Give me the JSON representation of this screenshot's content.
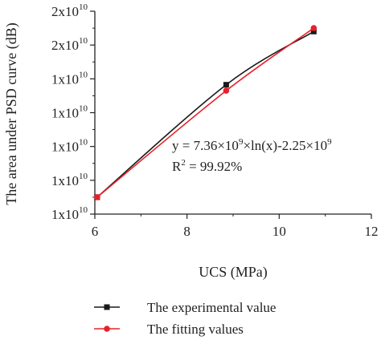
{
  "chart_data": {
    "type": "line",
    "xlabel": "UCS (MPa)",
    "ylabel": "The area under PSD curve (dB)",
    "xlim": [
      6,
      12
    ],
    "xticks": [
      6,
      8,
      10,
      12
    ],
    "xtick_labels": [
      "6",
      "8",
      "10",
      "12"
    ],
    "ytick_labels": [
      {
        "base": "1x10",
        "exp": "10"
      },
      {
        "base": "1x10",
        "exp": "10"
      },
      {
        "base": "1x10",
        "exp": "10"
      },
      {
        "base": "1x10",
        "exp": "10"
      },
      {
        "base": "1x10",
        "exp": "10"
      },
      {
        "base": "2x10",
        "exp": "10"
      },
      {
        "base": "2x10",
        "exp": "10"
      }
    ],
    "ylim": [
      0,
      12
    ],
    "series": [
      {
        "name": "The experimental value",
        "color": "#1a1a1a",
        "marker": "square",
        "x": [
          6.05,
          8.85,
          10.75
        ],
        "y": [
          1.0,
          7.65,
          10.8
        ]
      },
      {
        "name": "The fitting values",
        "color": "#e8202a",
        "marker": "circle",
        "x": [
          6.05,
          8.85,
          10.75
        ],
        "y": [
          1.0,
          7.3,
          11.0
        ]
      }
    ],
    "annotation": {
      "line1": {
        "p1": "y = 7.36×10",
        "e1": "9",
        "p2": "×ln(x)-2.25×10",
        "e2": "9"
      },
      "line2": {
        "p1": "R",
        "e1": "2",
        "p2": " = 99.92%"
      }
    },
    "legend_position": "bottom"
  }
}
